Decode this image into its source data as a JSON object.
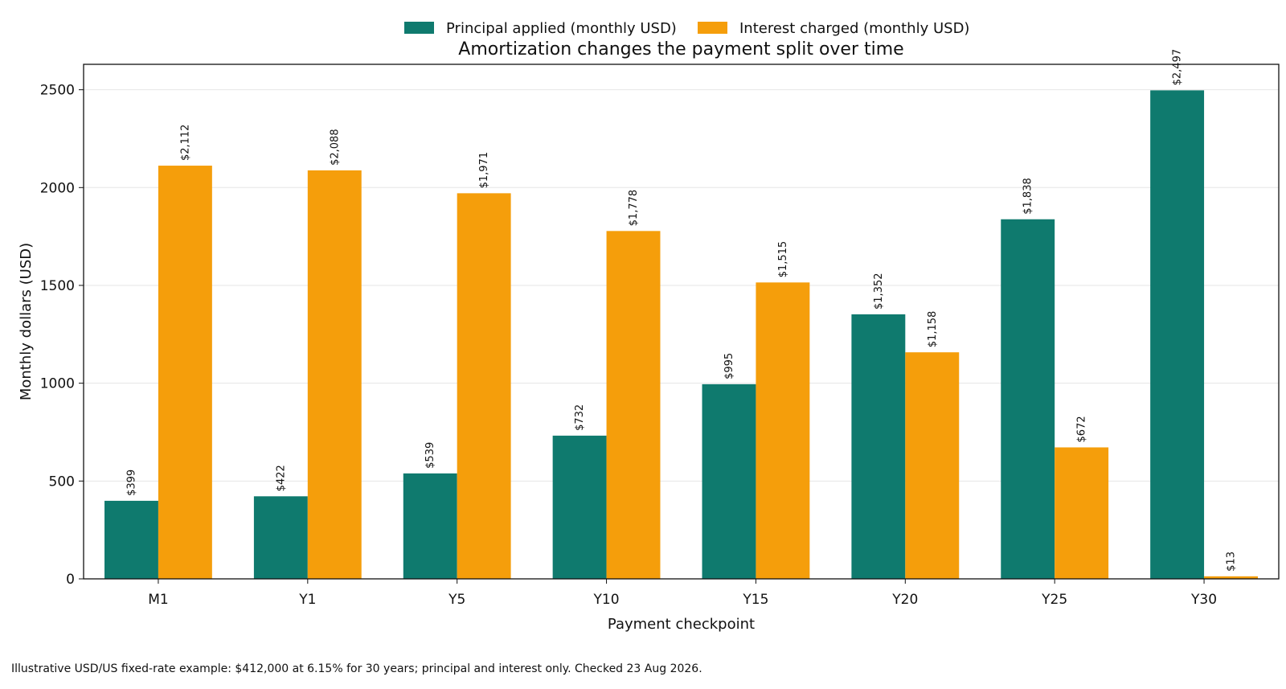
{
  "chart_data": {
    "type": "bar",
    "title": "Amortization changes the payment split over time",
    "xlabel": "Payment checkpoint",
    "ylabel": "Monthly dollars (USD)",
    "categories": [
      "M1",
      "Y1",
      "Y5",
      "Y10",
      "Y15",
      "Y20",
      "Y25",
      "Y30"
    ],
    "series": [
      {
        "name": "Principal applied (monthly USD)",
        "color": "#0f7a6e",
        "values": [
          399,
          422,
          539,
          732,
          995,
          1352,
          1838,
          2497
        ],
        "labels": [
          "$399",
          "$422",
          "$539",
          "$732",
          "$995",
          "$1,352",
          "$1,838",
          "$2,497"
        ]
      },
      {
        "name": "Interest charged (monthly USD)",
        "color": "#f59e0b",
        "values": [
          2112,
          2088,
          1971,
          1778,
          1515,
          1158,
          672,
          13
        ],
        "labels": [
          "$2,112",
          "$2,088",
          "$1,971",
          "$1,778",
          "$1,515",
          "$1,158",
          "$672",
          "$13"
        ]
      }
    ],
    "ylim": [
      0,
      2630
    ],
    "yticks": [
      0,
      500,
      1000,
      1500,
      2000,
      2500
    ],
    "grid": "horizontal",
    "legend_position": "top-center"
  },
  "footnote": "Illustrative USD/US fixed-rate example: $412,000 at 6.15% for 30 years; principal and interest only. Checked 23 Aug 2026."
}
